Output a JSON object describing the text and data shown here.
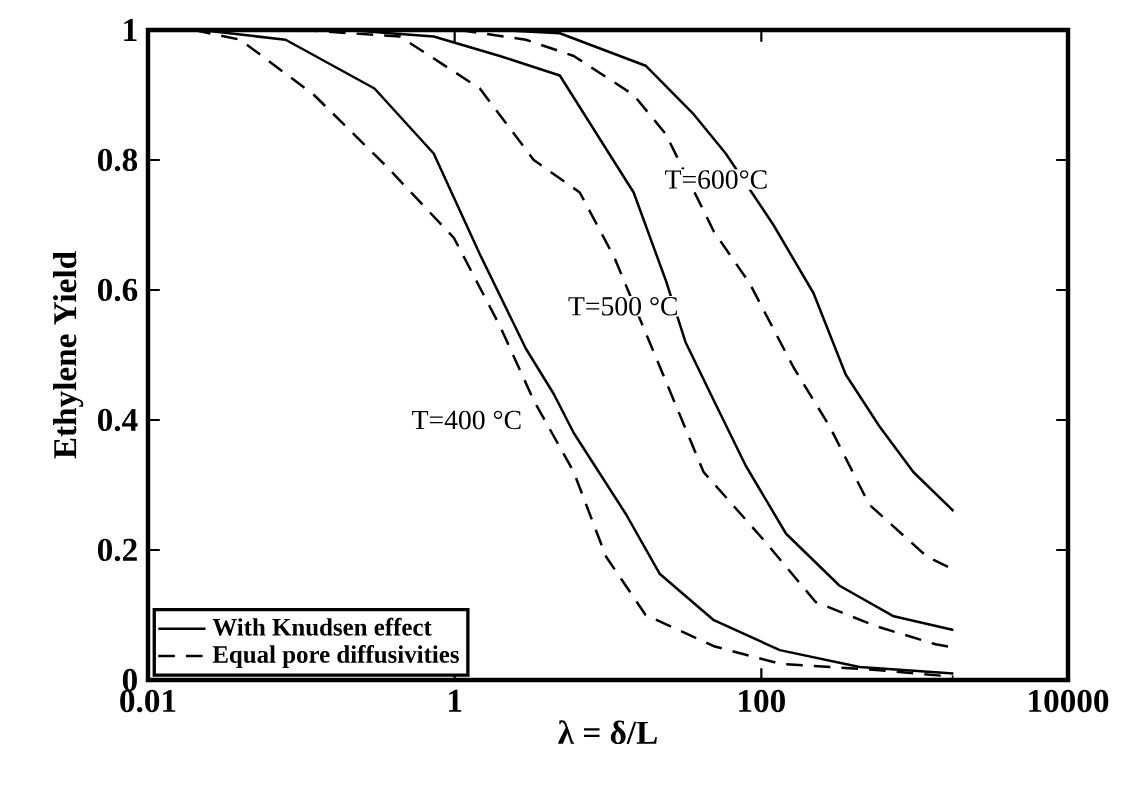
{
  "chart_data": {
    "type": "line",
    "xlabel": "λ = δ/L",
    "ylabel": "Ethylene Yield",
    "log": "x",
    "xlim": [
      0.01,
      10000
    ],
    "xticks": [
      0.01,
      1,
      100,
      10000
    ],
    "ylim": [
      0,
      1
    ],
    "yticks": [
      0,
      0.2,
      0.4,
      0.6,
      0.8,
      1
    ],
    "grid": false,
    "legend": "bottom left",
    "marker": "none",
    "series": [
      {
        "name": "With Knudsen effect",
        "color": "#000000",
        "line_style": "solid",
        "x": [
          0.022,
          0.079,
          0.3,
          0.73,
          1.46,
          2.91,
          4.43,
          5.98,
          13.1,
          21.8,
          49,
          132,
          437,
          1790
        ],
        "values": [
          1,
          0.985,
          0.91,
          0.81,
          0.655,
          0.51,
          0.44,
          0.38,
          0.255,
          0.163,
          0.092,
          0.046,
          0.02,
          0.01
        ]
      },
      {
        "name": "Equal pore diffusivities",
        "color": "#000000",
        "line_style": "dashed",
        "x": [
          0.02,
          0.04,
          0.121,
          0.36,
          0.99,
          1.97,
          3.28,
          5.98,
          9.7,
          17.6,
          49,
          132,
          590,
          1790
        ],
        "values": [
          1,
          0.985,
          0.9,
          0.79,
          0.68,
          0.545,
          0.43,
          0.32,
          0.19,
          0.1,
          0.052,
          0.025,
          0.015,
          0.005
        ]
      },
      {
        "color": "#000000",
        "line_style": "solid",
        "x": [
          0.2,
          0.73,
          1.97,
          4.85,
          14.7,
          23.8,
          32,
          49,
          79,
          145,
          324,
          730,
          1790
        ],
        "values": [
          1,
          0.99,
          0.96,
          0.93,
          0.75,
          0.615,
          0.52,
          0.43,
          0.33,
          0.225,
          0.145,
          0.098,
          0.077
        ]
      },
      {
        "color": "#000000",
        "line_style": "dashed",
        "x": [
          0.1,
          0.44,
          1.46,
          3.28,
          6.55,
          11,
          23.8,
          42,
          104,
          226,
          556,
          1370,
          1790
        ],
        "values": [
          1,
          0.99,
          0.91,
          0.8,
          0.75,
          0.65,
          0.46,
          0.32,
          0.215,
          0.12,
          0.083,
          0.055,
          0.05
        ]
      },
      {
        "color": "#000000",
        "line_style": "solid",
        "x": [
          1.97,
          4.85,
          17.6,
          36.3,
          58.6,
          120,
          219,
          355,
          590,
          980,
          1790
        ],
        "values": [
          1,
          0.995,
          0.945,
          0.87,
          0.81,
          0.7,
          0.595,
          0.47,
          0.39,
          0.32,
          0.26
        ]
      },
      {
        "color": "#000000",
        "line_style": "dashed",
        "x": [
          1.08,
          2.91,
          5.98,
          14.7,
          23.8,
          49,
          84,
          163,
          279,
          505,
          1200,
          1790
        ],
        "values": [
          1,
          0.985,
          0.96,
          0.9,
          0.84,
          0.69,
          0.61,
          0.48,
          0.39,
          0.27,
          0.19,
          0.17
        ]
      }
    ],
    "annotations": [
      "T=600°C",
      "T=500 °C",
      "T=400 °C"
    ]
  }
}
